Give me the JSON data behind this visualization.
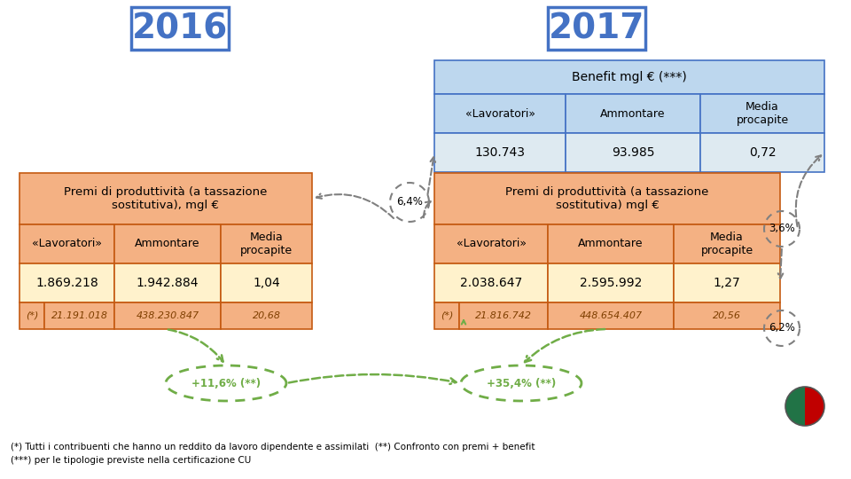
{
  "title_2016": "2016",
  "title_2017": "2017",
  "benefit_header": "Benefit mgl € (***)",
  "benefit_cols": [
    "«Lavoratori»",
    "Ammontare",
    "Media\nprocapite"
  ],
  "benefit_row": [
    "130.743",
    "93.985",
    "0,72"
  ],
  "left_table_header": "Premi di produttività (a tassazione\nsostitutiva), mgl €",
  "left_table_cols": [
    "«Lavoratori»",
    "Ammontare",
    "Media\nprocapite"
  ],
  "left_table_row1": [
    "1.869.218",
    "1.942.884",
    "1,04"
  ],
  "left_table_row2": [
    "(*)",
    "21.191.018",
    "438.230.847",
    "20,68"
  ],
  "right_table_header": "Premi di produttività (a tassazione\nsostitutiva) mgl €",
  "right_table_cols": [
    "«Lavoratori»",
    "Ammontare",
    "Media\nprocapite"
  ],
  "right_table_row1": [
    "2.038.647",
    "2.595.992",
    "1,27"
  ],
  "right_table_row2": [
    "(*)",
    "21.816.742",
    "448.654.407",
    "20,56"
  ],
  "label_64": "6,4%",
  "label_36": "3,6%",
  "label_116": "+11,6% (**)",
  "label_354": "+35,4% (**)",
  "label_62": "6,2%",
  "footnote1": "(*) Tutti i contribuenti che hanno un reddito da lavoro dipendente e assimilati  (**) Confronto con premi + benefit",
  "footnote2": "(***) per le tipologie previste nella certificazione CU",
  "bg_color": "#FFFFFF",
  "blue_header_bg": "#BDD7EE",
  "blue_border": "#4472C4",
  "orange_header_bg": "#F4B183",
  "orange_border": "#C55A11",
  "data_row_bg": "#FFF2CC",
  "italic_row_bg": "#F4B183",
  "benefit_row_bg": "#DEEAF1",
  "year_box_color": "#4472C4",
  "year_text_color": "#4472C4",
  "arrow_gray": "#808080",
  "arrow_green": "#70AD47",
  "circle_green": "#70AD47",
  "flag_green": "#217346",
  "flag_red": "#C00000"
}
